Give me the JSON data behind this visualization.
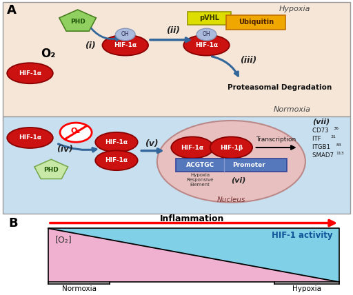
{
  "title_A": "A",
  "title_B": "B",
  "normoxia_bg": "#f5e6d8",
  "hypoxia_bg": "#c8dff0",
  "normoxia_label": "Normoxia",
  "hypoxia_label": "Hypoxia",
  "hif_color": "#cc1111",
  "phd_color": "#90d060",
  "phd_color2": "#c8e8a8",
  "phd_label": "PHD",
  "pvhl_color": "#dddd00",
  "pvhl_label": "pVHL",
  "ubiquitin_color": "#f0a800",
  "ubiquitin_label": "Ubiquitin",
  "oh_color": "#aabbdd",
  "oh_label": "OH",
  "o2_label": "O₂",
  "arrow_color": "#336699",
  "step_i": "(i)",
  "step_ii": "(ii)",
  "step_iii": "(iii)",
  "step_iv": "(iv)",
  "step_v": "(v)",
  "step_vi": "(vi)",
  "step_vii": "(vii)",
  "proteasomal": "Proteasomal Degradation",
  "transcription": "Transcription",
  "acgtgc": "ACGTGC",
  "promoter": "Promoter",
  "hre_label": "Hypoxia\nResponsive\nElement",
  "nucleus_label": "Nucleus",
  "inflammation": "Inflammation",
  "hif1_activity": "HIF-1 activity",
  "o2_conc": "[O₂]",
  "normoxia_label2": "Normoxia",
  "hypoxia_label2": "Hypoxia",
  "pink_color": "#f0b0d0",
  "cyan_color": "#80d0e8",
  "nucleus_color": "#e8c0c0",
  "dna_color": "#5577bb",
  "border_color": "#888888",
  "hif_alpha": "HIF-1α",
  "hif_beta": "HIF-1β"
}
